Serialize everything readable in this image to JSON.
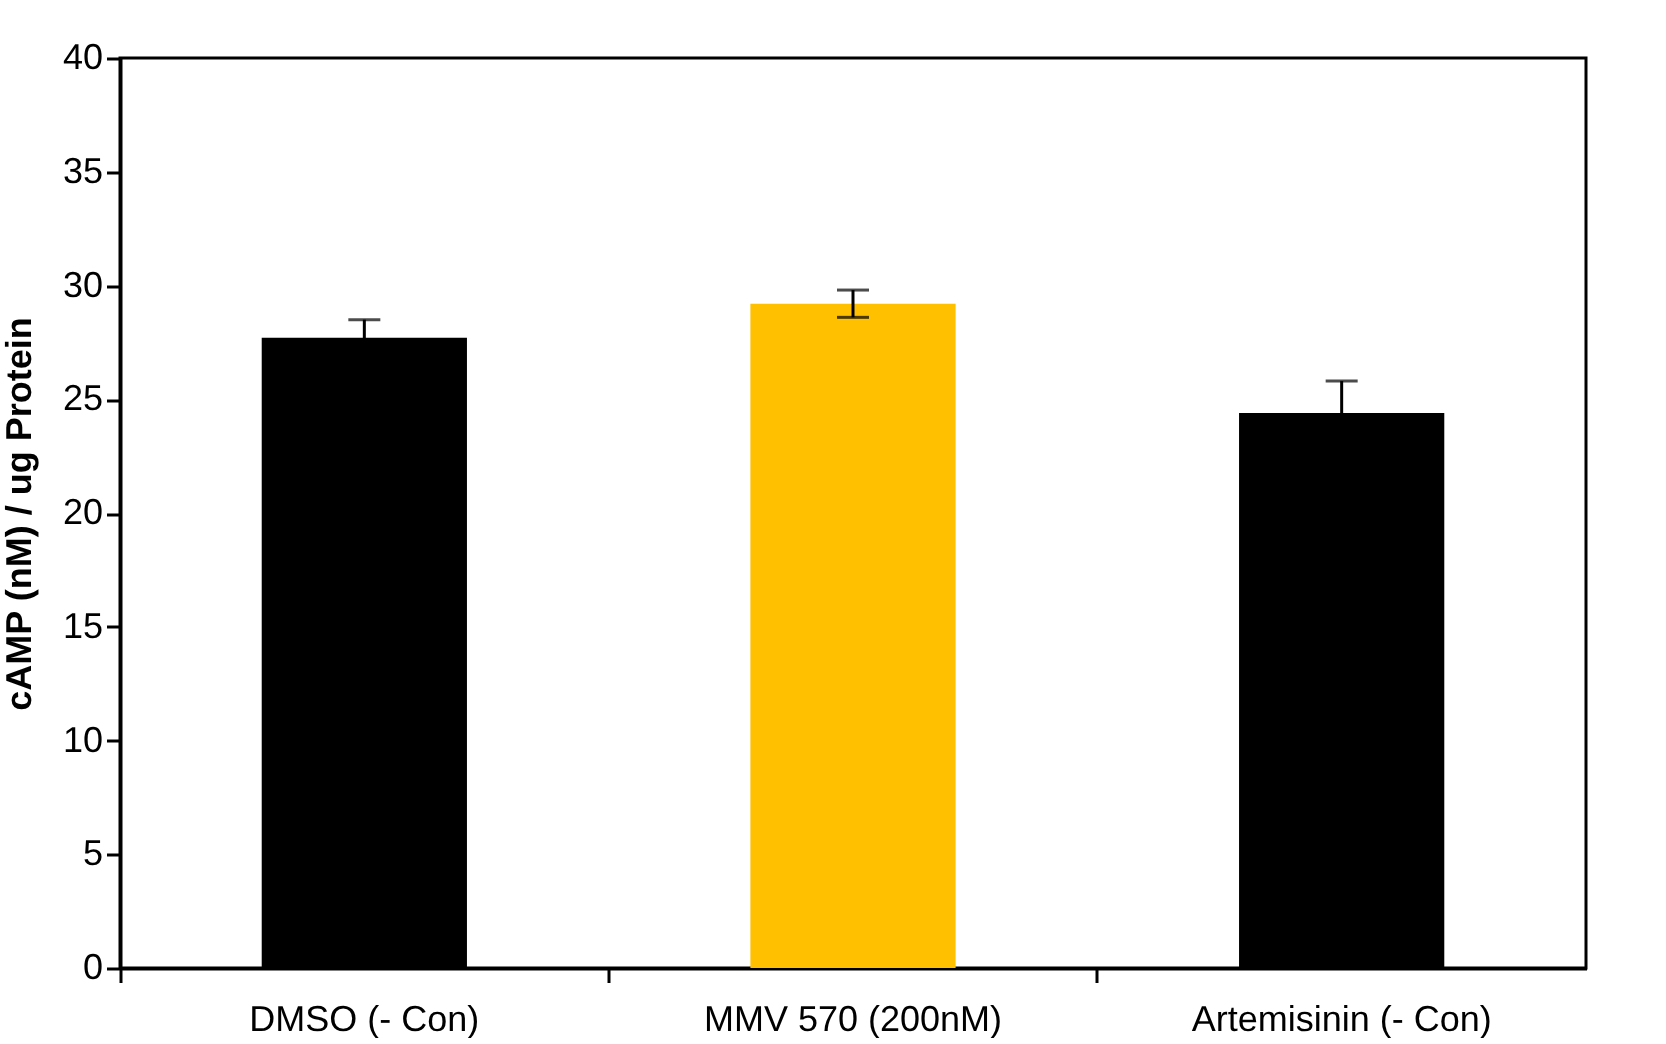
{
  "chart_data": {
    "type": "bar",
    "ylabel": "cAMP (nM) / ug Protein",
    "categories": [
      "DMSO (- Con)",
      "MMV 570 (200nM)",
      "Artemisinin (- Con)"
    ],
    "values": [
      27.7,
      29.2,
      24.4
    ],
    "colors": [
      "#000000",
      "#ffc000",
      "#000000"
    ],
    "errors": [
      0.8,
      0.6,
      1.4
    ],
    "ylim": [
      0,
      40
    ],
    "yticks": [
      0,
      5,
      10,
      15,
      20,
      25,
      30,
      35,
      40
    ],
    "grid": false
  }
}
